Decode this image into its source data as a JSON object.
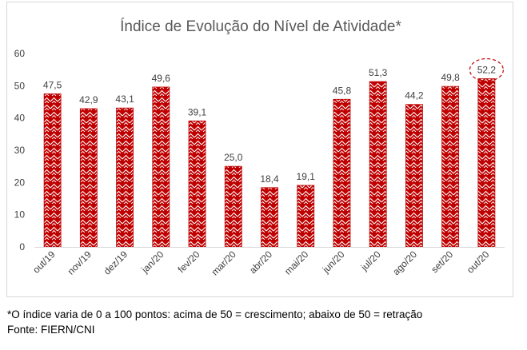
{
  "chart_data": {
    "type": "bar",
    "title": "Índice de Evolução do Nível de Atividade*",
    "categories": [
      "out/19",
      "nov/19",
      "dez/19",
      "jan/20",
      "fev/20",
      "mar/20",
      "abr/20",
      "mai/20",
      "jun/20",
      "jul/20",
      "ago/20",
      "set/20",
      "out/20"
    ],
    "values": [
      47.5,
      42.9,
      43.1,
      49.6,
      39.1,
      25.0,
      18.4,
      19.1,
      45.8,
      51.3,
      44.2,
      49.8,
      52.2
    ],
    "value_labels": [
      "47,5",
      "42,9",
      "43,1",
      "49,6",
      "39,1",
      "25,0",
      "18,4",
      "19,1",
      "45,8",
      "51,3",
      "44,2",
      "49,8",
      "52,2"
    ],
    "y_ticks": [
      "0",
      "10",
      "20",
      "30",
      "40",
      "50",
      "60"
    ],
    "ylim": [
      0,
      60
    ],
    "grid": false,
    "legend": "none",
    "highlighted_label_index": 12,
    "colors": {
      "bar": "#c00000",
      "bar_pattern": "#ffffff",
      "highlight_ring": "#c00000",
      "axis": "#d9d9d9",
      "text": "#404040",
      "title": "#595959"
    }
  },
  "footnotes": {
    "note": "*O índice varia de 0 a 100 pontos: acima de 50 = crescimento; abaixo de 50 = retração",
    "source": "Fonte: FIERN/CNI"
  }
}
